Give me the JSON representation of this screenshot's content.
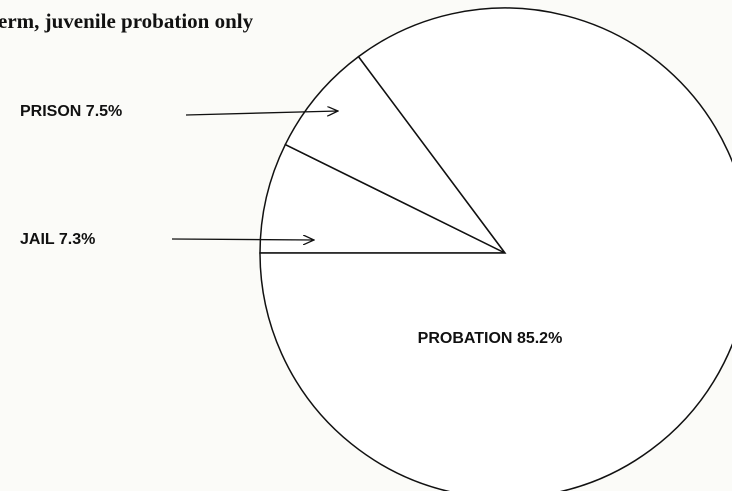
{
  "chart_data": {
    "type": "pie",
    "title": "erm,  juvenile probation only",
    "categories": [
      "JAIL",
      "PRISON",
      "PROBATION"
    ],
    "values": [
      7.3,
      7.5,
      85.2
    ],
    "value_labels": [
      "7.3%",
      "7.5%",
      "85.2%"
    ],
    "color": "#ffffff"
  }
}
